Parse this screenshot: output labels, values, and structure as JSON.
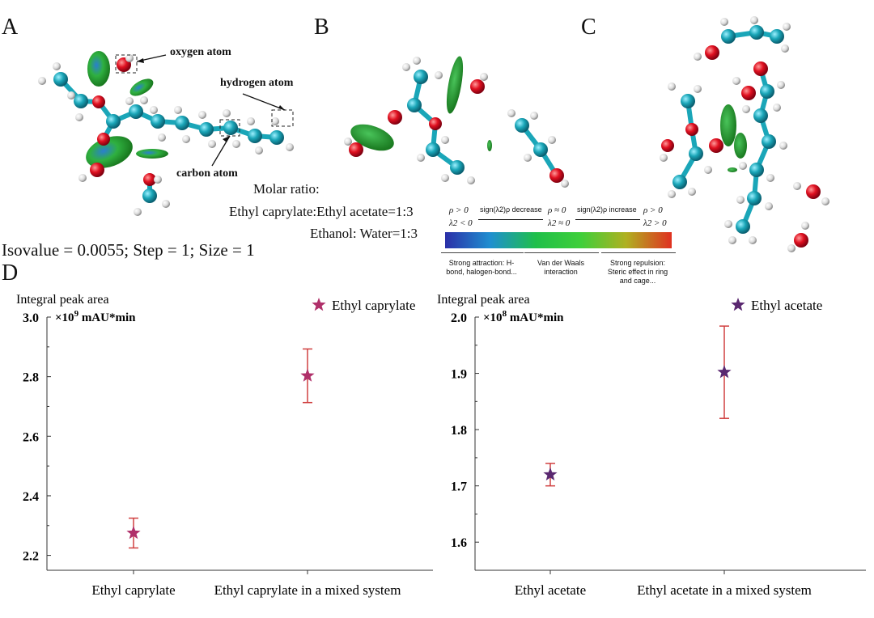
{
  "panels": {
    "a": "A",
    "b": "B",
    "c": "C",
    "d": "D"
  },
  "labels": {
    "oxygen": "oxygen atom",
    "hydrogen": "hydrogen atom",
    "carbon": "carbon atom"
  },
  "info": {
    "molar_ratio": "Molar ratio:",
    "ratio1": "Ethyl caprylate:Ethyl acetate=1:3",
    "ratio2": "Ethanol: Water=1:3",
    "isovalue": "Isovalue = 0.0055; Step = 1; Size = 1"
  },
  "colorbar": {
    "left_top": "ρ > 0",
    "left_bottom": "λ2 < 0",
    "decrease": "sign(λ2)ρ decrease",
    "mid_top": "ρ ≈ 0",
    "mid_bottom": "λ2 ≈ 0",
    "increase": "sign(λ2)ρ increase",
    "right_top": "ρ > 0",
    "right_bottom": "λ2 > 0",
    "box1": "Strong attraction: H-bond, halogen-bond...",
    "box2": "Van der Waals interaction",
    "box3": "Steric effect in ring and cage...",
    "box3_title": "Strong repulsion:",
    "colors": [
      "#2b2fa8",
      "#1f8fd0",
      "#1fbf4a",
      "#3fcf3a",
      "#b0b020",
      "#e03020"
    ]
  },
  "chart_data": [
    {
      "type": "scatter",
      "ylabel": "Integral peak area",
      "yunit_prefix": "×10",
      "yunit_exp": "9",
      "yunit": " mAU*min",
      "categories": [
        "Ethyl caprylate",
        "Ethyl caprylate in a mixed system"
      ],
      "ylim": [
        2.15,
        3.0
      ],
      "yticks": [
        "2.2",
        "2.4",
        "2.6",
        "2.8",
        "3.0"
      ],
      "ytick_values": [
        2.2,
        2.4,
        2.6,
        2.8,
        3.0
      ],
      "series": [
        {
          "name": "Ethyl caprylate",
          "values": [
            2.275,
            2.803
          ],
          "errors": [
            0.05,
            0.09
          ],
          "color": "#b0306a"
        }
      ],
      "legend": "top-right",
      "errorbar_color": "#d04040"
    },
    {
      "type": "scatter",
      "ylabel": "Integral peak area",
      "yunit_prefix": "×10",
      "yunit_exp": "8",
      "yunit": " mAU*min",
      "categories": [
        "Ethyl acetate",
        "Ethyl acetate in a mixed system"
      ],
      "ylim": [
        1.55,
        2.0
      ],
      "yticks": [
        "1.6",
        "1.7",
        "1.8",
        "1.9",
        "2.0"
      ],
      "ytick_values": [
        1.6,
        1.7,
        1.8,
        1.9,
        2.0
      ],
      "series": [
        {
          "name": "Ethyl acetate",
          "values": [
            1.72,
            1.902
          ],
          "errors": [
            0.02,
            0.082
          ],
          "color": "#5a2870"
        }
      ],
      "legend": "top-right",
      "errorbar_color": "#d04040"
    }
  ]
}
